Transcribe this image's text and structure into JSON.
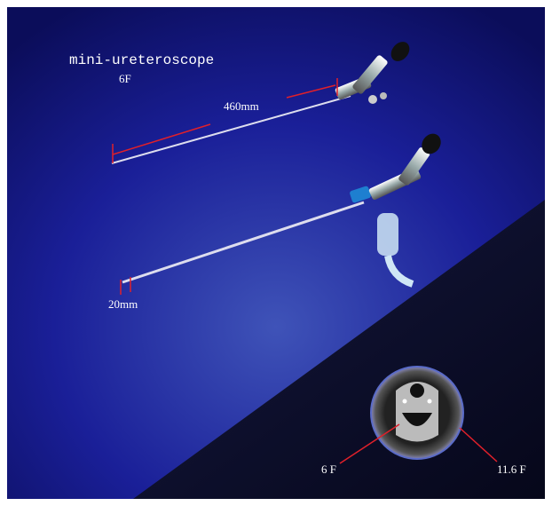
{
  "title": "mini-ureteroscope",
  "subtitle": "6F",
  "annotations": {
    "length": "460mm",
    "tip": "20mm",
    "inner": "6 F",
    "outer": "11.6 F"
  }
}
